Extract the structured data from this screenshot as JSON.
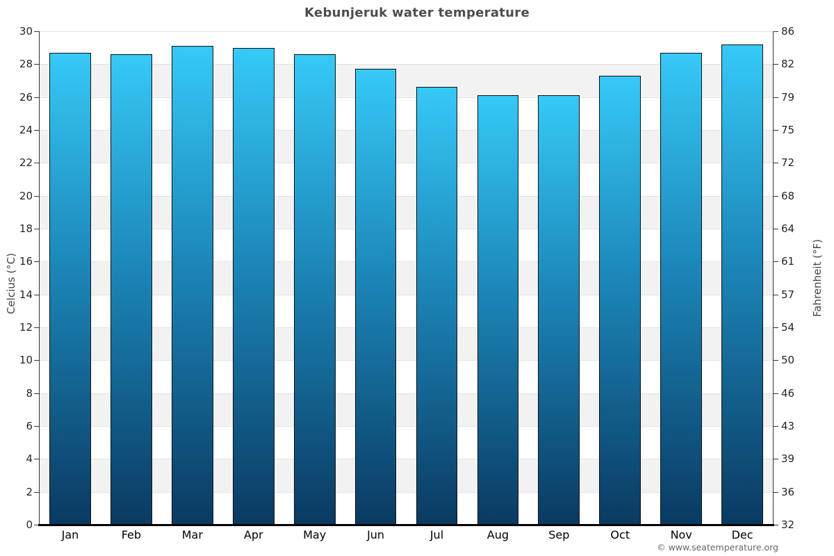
{
  "title": "Kebunjeruk water temperature",
  "footer": "© www.seatemperature.org",
  "chart_data": {
    "type": "bar",
    "title": "Kebunjeruk water temperature",
    "categories": [
      "Jan",
      "Feb",
      "Mar",
      "Apr",
      "May",
      "Jun",
      "Jul",
      "Aug",
      "Sep",
      "Oct",
      "Nov",
      "Dec"
    ],
    "values": [
      28.7,
      28.6,
      29.1,
      29.0,
      28.6,
      27.7,
      26.6,
      26.1,
      26.1,
      27.3,
      28.7,
      29.2
    ],
    "ylabel_left": "Celcius (°C)",
    "ylabel_right": "Fahrenheit (°F)",
    "ylim": [
      0,
      30
    ],
    "ytick_step": 2,
    "celsius_ticks": [
      0,
      2,
      4,
      6,
      8,
      10,
      12,
      14,
      16,
      18,
      20,
      22,
      24,
      26,
      28,
      30
    ],
    "fahrenheit_tick_labels": [
      "32",
      "36",
      "39",
      "43",
      "46",
      "50",
      "54",
      "57",
      "61",
      "64",
      "68",
      "72",
      "75",
      "79",
      "82",
      "86"
    ],
    "grid": "alternating horizontal 2°C bands with light gridlines",
    "legend": "none",
    "colors": {
      "bar_top": "#36c9f7",
      "bar_mid": "#1c87b9",
      "bar_bottom": "#0a3a62",
      "bar_border": "#101010",
      "band_gray": "#f2f2f2",
      "band_white": "#ffffff",
      "grid_line": "#e2e2e2",
      "axis": "#333333",
      "baseline": "#000000",
      "title_color": "#4d4d4d",
      "footer_color": "#666666"
    }
  }
}
